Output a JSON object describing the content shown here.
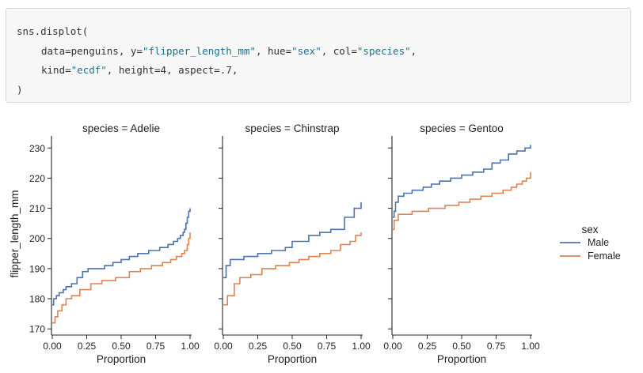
{
  "code": {
    "line1": "sns.displot(",
    "line2_prefix": "data=penguins, y=",
    "line2_s1": "\"flipper_length_mm\"",
    "line2_mid": ", hue=",
    "line2_s2": "\"sex\"",
    "line2_mid2": ", col=",
    "line2_s3": "\"species\"",
    "line2_end": ",",
    "line3_prefix": "kind=",
    "line3_s1": "\"ecdf\"",
    "line3_mid": ", height=",
    "line3_n1": "4",
    "line3_mid2": ", aspect=",
    "line3_n2": ".7",
    "line3_end": ",",
    "line4": ")"
  },
  "chart_data": {
    "type": "line",
    "ylabel": "flipper_length_mm",
    "ylim": [
      169,
      234
    ],
    "yticks": [
      170,
      180,
      190,
      200,
      210,
      220,
      230
    ],
    "xlim": [
      0,
      1
    ],
    "xticks": [
      "0.00",
      "0.25",
      "0.50",
      "0.75",
      "1.00"
    ],
    "colors": {
      "Male": "#4c72b0",
      "Female": "#dd8452"
    },
    "legend": {
      "title": "sex",
      "entries": [
        "Male",
        "Female"
      ],
      "placement": "right"
    },
    "panels": [
      {
        "title": "species = Adelie",
        "xlabel": "Proportion",
        "series": [
          {
            "name": "Male",
            "x": [
              0,
              0.01,
              0.03,
              0.05,
              0.08,
              0.1,
              0.14,
              0.18,
              0.22,
              0.26,
              0.32,
              0.38,
              0.44,
              0.5,
              0.56,
              0.62,
              0.7,
              0.78,
              0.84,
              0.88,
              0.91,
              0.93,
              0.95,
              0.96,
              0.97,
              0.98,
              0.99,
              1.0
            ],
            "y": [
              178,
              180,
              181,
              182,
              183,
              184,
              185,
              187,
              189,
              190,
              190,
              191,
              192,
              193,
              194,
              195,
              196,
              197,
              198,
              199,
              200,
              201,
              202,
              203,
              205,
              207,
              209,
              210
            ]
          },
          {
            "name": "Female",
            "x": [
              0,
              0.02,
              0.04,
              0.07,
              0.1,
              0.14,
              0.2,
              0.28,
              0.36,
              0.46,
              0.56,
              0.64,
              0.72,
              0.8,
              0.86,
              0.9,
              0.94,
              0.96,
              0.98,
              0.99,
              1.0
            ],
            "y": [
              172,
              174,
              176,
              178,
              180,
              181,
              183,
              185,
              186,
              187,
              189,
              190,
              191,
              192,
              193,
              194,
              195,
              196,
              198,
              200,
              202
            ]
          }
        ]
      },
      {
        "title": "species = Chinstrap",
        "xlabel": "Proportion",
        "series": [
          {
            "name": "Male",
            "x": [
              0,
              0.02,
              0.05,
              0.15,
              0.25,
              0.35,
              0.45,
              0.5,
              0.62,
              0.7,
              0.78,
              0.88,
              0.95,
              1.0
            ],
            "y": [
              187,
              191,
              193,
              194,
              195,
              196,
              197,
              199,
              201,
              202,
              203,
              207,
              210,
              212
            ]
          },
          {
            "name": "Female",
            "x": [
              0,
              0.03,
              0.08,
              0.12,
              0.2,
              0.28,
              0.38,
              0.48,
              0.55,
              0.62,
              0.7,
              0.78,
              0.85,
              0.92,
              0.96,
              1.0
            ],
            "y": [
              178,
              181,
              185,
              187,
              188,
              190,
              191,
              192,
              193,
              194,
              195,
              196,
              198,
              199,
              201,
              202
            ]
          }
        ]
      },
      {
        "title": "species = Gentoo",
        "xlabel": "Proportion",
        "series": [
          {
            "name": "Male",
            "x": [
              0,
              0.01,
              0.02,
              0.04,
              0.08,
              0.14,
              0.22,
              0.28,
              0.34,
              0.42,
              0.5,
              0.58,
              0.66,
              0.72,
              0.78,
              0.84,
              0.9,
              0.96,
              1.0
            ],
            "y": [
              207,
              209,
              212,
              214,
              215,
              216,
              217,
              218,
              219,
              220,
              221,
              222,
              223,
              225,
              226,
              228,
              229,
              230,
              231
            ]
          },
          {
            "name": "Female",
            "x": [
              0,
              0.01,
              0.04,
              0.14,
              0.26,
              0.38,
              0.48,
              0.56,
              0.64,
              0.72,
              0.8,
              0.86,
              0.9,
              0.94,
              0.97,
              1.0
            ],
            "y": [
              203,
              206,
              208,
              209,
              210,
              211,
              212,
              213,
              214,
              215,
              216,
              217,
              218,
              219,
              220,
              222
            ]
          }
        ]
      }
    ]
  }
}
